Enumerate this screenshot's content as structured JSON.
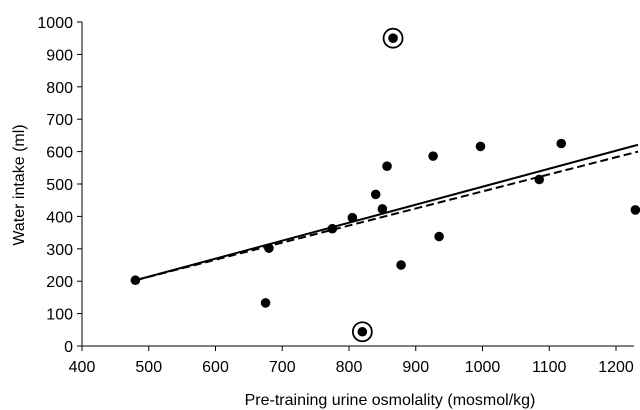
{
  "chart_data": {
    "type": "scatter",
    "xlabel": "Pre-training urine osmolality (mosmol/kg)",
    "ylabel": "Water intake (ml)",
    "xlim": [
      400,
      1240
    ],
    "ylim": [
      0,
      1000
    ],
    "x_ticks": [
      400,
      500,
      600,
      700,
      800,
      900,
      1000,
      1100,
      1200
    ],
    "y_ticks": [
      0,
      100,
      200,
      300,
      400,
      500,
      600,
      700,
      800,
      900,
      1000
    ],
    "grid": false,
    "legend": "none",
    "points": [
      {
        "x": 480,
        "y": 203,
        "circled": false
      },
      {
        "x": 675,
        "y": 133,
        "circled": false
      },
      {
        "x": 680,
        "y": 302,
        "circled": false
      },
      {
        "x": 775,
        "y": 362,
        "circled": false
      },
      {
        "x": 805,
        "y": 396,
        "circled": false
      },
      {
        "x": 820,
        "y": 44,
        "circled": true
      },
      {
        "x": 840,
        "y": 468,
        "circled": false
      },
      {
        "x": 850,
        "y": 423,
        "circled": false
      },
      {
        "x": 857,
        "y": 555,
        "circled": false
      },
      {
        "x": 866,
        "y": 950,
        "circled": true
      },
      {
        "x": 878,
        "y": 250,
        "circled": false
      },
      {
        "x": 926,
        "y": 586,
        "circled": false
      },
      {
        "x": 935,
        "y": 338,
        "circled": false
      },
      {
        "x": 997,
        "y": 616,
        "circled": false
      },
      {
        "x": 1085,
        "y": 514,
        "circled": false
      },
      {
        "x": 1118,
        "y": 625,
        "circled": false
      },
      {
        "x": 1229,
        "y": 420,
        "circled": false
      }
    ],
    "trend_lines": [
      {
        "style": "solid",
        "x": [
          480,
          1233
        ],
        "y": [
          203,
          621
        ]
      },
      {
        "style": "dashed",
        "x": [
          480,
          1233
        ],
        "y": [
          203,
          600
        ]
      }
    ],
    "colors": {
      "marker": "#000000",
      "line": "#000000",
      "axis": "#000000"
    }
  }
}
